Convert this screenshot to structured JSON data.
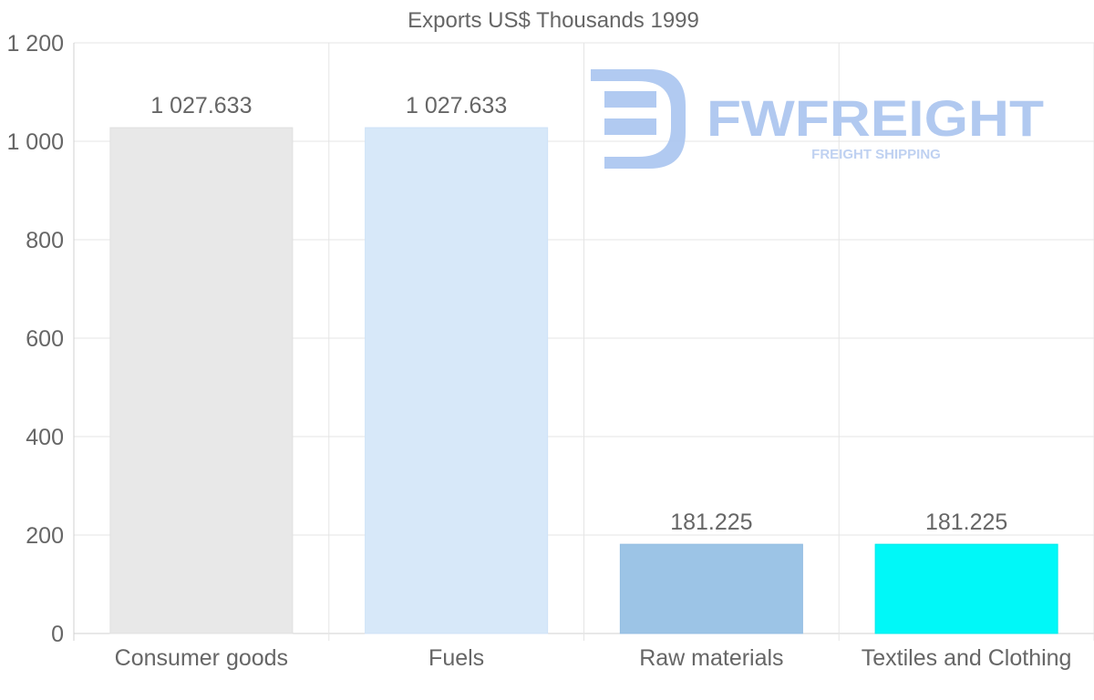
{
  "chart_data": {
    "type": "bar",
    "title": "Exports US$ Thousands 1999",
    "categories": [
      "Consumer goods",
      "Fuels",
      "Raw materials",
      "Textiles and Clothing"
    ],
    "values": [
      1027.633,
      1027.633,
      181.225,
      181.225
    ],
    "value_labels": [
      "1 027.633",
      "1 027.633",
      "181.225",
      "181.225"
    ],
    "bar_colors": [
      "#e8e8e8",
      "#d7e8f9",
      "#9cc4e6",
      "#00f8f8"
    ],
    "bar_border_colors": [
      "#e0e0e0",
      "#cfe2f7",
      "#93bde2",
      "#00eaea"
    ],
    "ylim": [
      0,
      1200
    ],
    "y_ticks": [
      0,
      200,
      400,
      600,
      800,
      1000,
      1200
    ],
    "y_tick_labels": [
      "0",
      "200",
      "400",
      "600",
      "800",
      "1 000",
      "1 200"
    ],
    "xlabel": "",
    "ylabel": "",
    "grid": true,
    "legend": "none"
  },
  "watermark": {
    "name": "FWFREIGHT",
    "tagline": "FREIGHT SHIPPING",
    "color": "#a9c4ef"
  },
  "colors": {
    "text": "#666666",
    "grid": "#e5e5e5",
    "axis": "#d0d0d0"
  }
}
